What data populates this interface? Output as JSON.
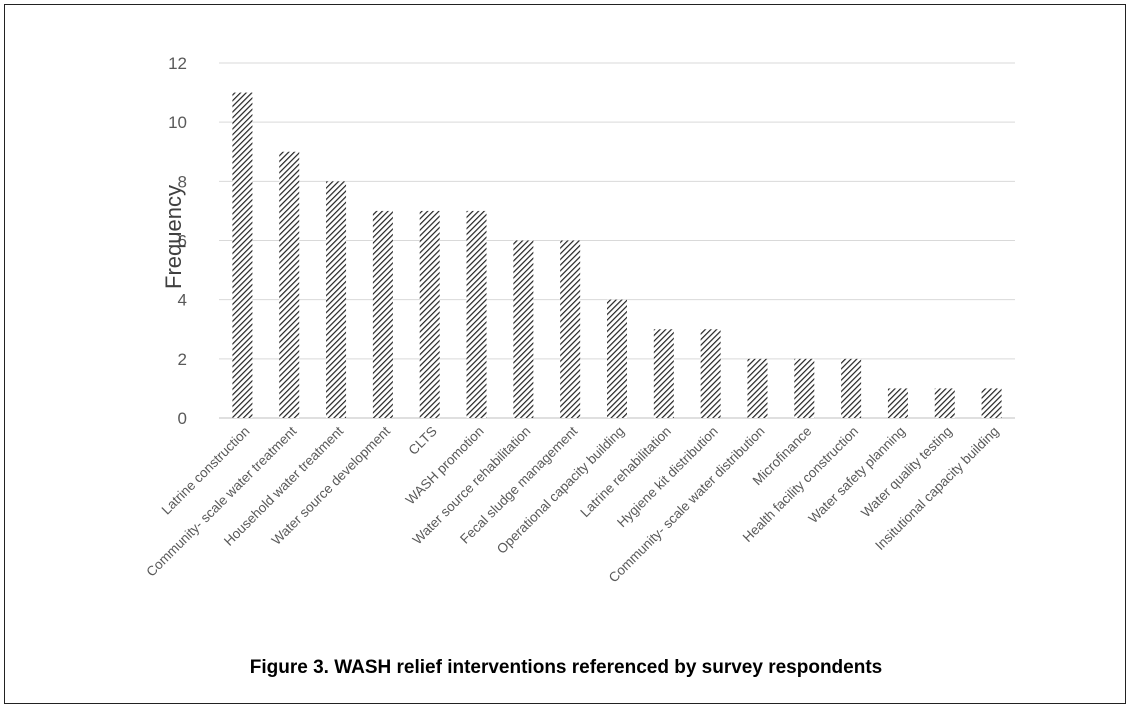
{
  "caption": "Figure 3. WASH relief interventions referenced by survey respondents",
  "chart_data": {
    "type": "bar",
    "ylabel": "Frequency",
    "xlabel": "",
    "ylim": [
      0,
      12
    ],
    "yticks": [
      0,
      2,
      4,
      6,
      8,
      10,
      12
    ],
    "grid": true,
    "bar_fill": "diagonal hatch",
    "categories": [
      "Latrine construction",
      "Community- scale water treatment",
      "Household water treatment",
      "Water source development",
      "CLTS",
      "WASH promotion",
      "Water source rehabilitation",
      "Fecal sludge management",
      "Operational capacity building",
      "Latrine rehabilitation",
      "Hygiene kit distribution",
      "Community- scale water distribution",
      "Microfinance",
      "Health facility construction",
      "Water safety planning",
      "Water quality testing",
      "Insitutional capacity building"
    ],
    "values": [
      11,
      9,
      8,
      7,
      7,
      7,
      6,
      6,
      4,
      3,
      3,
      2,
      2,
      2,
      1,
      1,
      1
    ]
  },
  "colors": {
    "bar": "#222222",
    "grid": "#d9d9d9",
    "tick_text": "#595959",
    "label_text": "#404040"
  }
}
